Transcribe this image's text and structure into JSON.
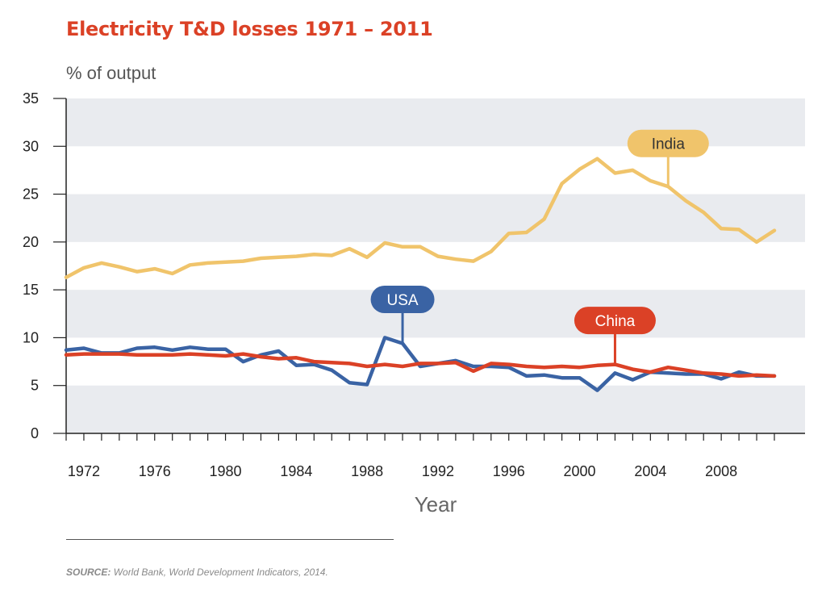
{
  "chart_data": {
    "type": "line",
    "title": "Electricity T&D losses 1971 – 2011",
    "ylabel": "% of output",
    "xlabel": "Year",
    "ylim": [
      0,
      35
    ],
    "yticks": [
      0,
      5,
      10,
      15,
      20,
      25,
      30,
      35
    ],
    "xticks": [
      1972,
      1976,
      1980,
      1984,
      1988,
      1992,
      1996,
      2000,
      2004,
      2008
    ],
    "xrange": [
      1971,
      2011
    ],
    "x": [
      1971,
      1972,
      1973,
      1974,
      1975,
      1976,
      1977,
      1978,
      1979,
      1980,
      1981,
      1982,
      1983,
      1984,
      1985,
      1986,
      1987,
      1988,
      1989,
      1990,
      1991,
      1992,
      1993,
      1994,
      1995,
      1996,
      1997,
      1998,
      1999,
      2000,
      2001,
      2002,
      2003,
      2004,
      2005,
      2006,
      2007,
      2008,
      2009,
      2010,
      2011
    ],
    "series": [
      {
        "name": "India",
        "color": "#f0c46b",
        "label_year": 2005,
        "label_value": 30.3,
        "values": [
          16.3,
          17.3,
          17.8,
          17.4,
          16.9,
          17.2,
          16.7,
          17.6,
          17.8,
          17.9,
          18.0,
          18.3,
          18.4,
          18.5,
          18.7,
          18.6,
          19.3,
          18.4,
          19.9,
          19.5,
          19.5,
          18.5,
          18.2,
          18.0,
          19.0,
          20.9,
          21.0,
          22.4,
          26.1,
          27.6,
          28.7,
          27.2,
          27.5,
          26.4,
          25.8,
          24.3,
          23.1,
          21.4,
          21.3,
          20.0,
          21.2
        ]
      },
      {
        "name": "USA",
        "color": "#3a63a4",
        "label_year": 1990,
        "label_value": 14.0,
        "values": [
          8.7,
          8.9,
          8.4,
          8.4,
          8.9,
          9.0,
          8.7,
          9.0,
          8.8,
          8.8,
          7.5,
          8.2,
          8.6,
          7.1,
          7.2,
          6.6,
          5.3,
          5.1,
          10.0,
          9.4,
          7.0,
          7.3,
          7.6,
          7.0,
          7.0,
          6.9,
          6.0,
          6.1,
          5.8,
          5.8,
          4.5,
          6.3,
          5.6,
          6.4,
          6.3,
          6.2,
          6.2,
          5.7,
          6.4,
          6.0,
          6.0
        ]
      },
      {
        "name": "China",
        "color": "#db4126",
        "label_year": 2002,
        "label_value": 11.8,
        "values": [
          8.2,
          8.3,
          8.3,
          8.3,
          8.2,
          8.2,
          8.2,
          8.3,
          8.2,
          8.1,
          8.3,
          8.0,
          7.8,
          7.9,
          7.5,
          7.4,
          7.3,
          7.0,
          7.2,
          7.0,
          7.3,
          7.3,
          7.4,
          6.5,
          7.3,
          7.2,
          7.0,
          6.9,
          7.0,
          6.9,
          7.1,
          7.2,
          6.7,
          6.4,
          6.9,
          6.6,
          6.3,
          6.2,
          6.0,
          6.1,
          6.0
        ]
      }
    ]
  },
  "source_label": "SOURCE:",
  "source_text": "World Bank, World Development Indicators, 2014."
}
